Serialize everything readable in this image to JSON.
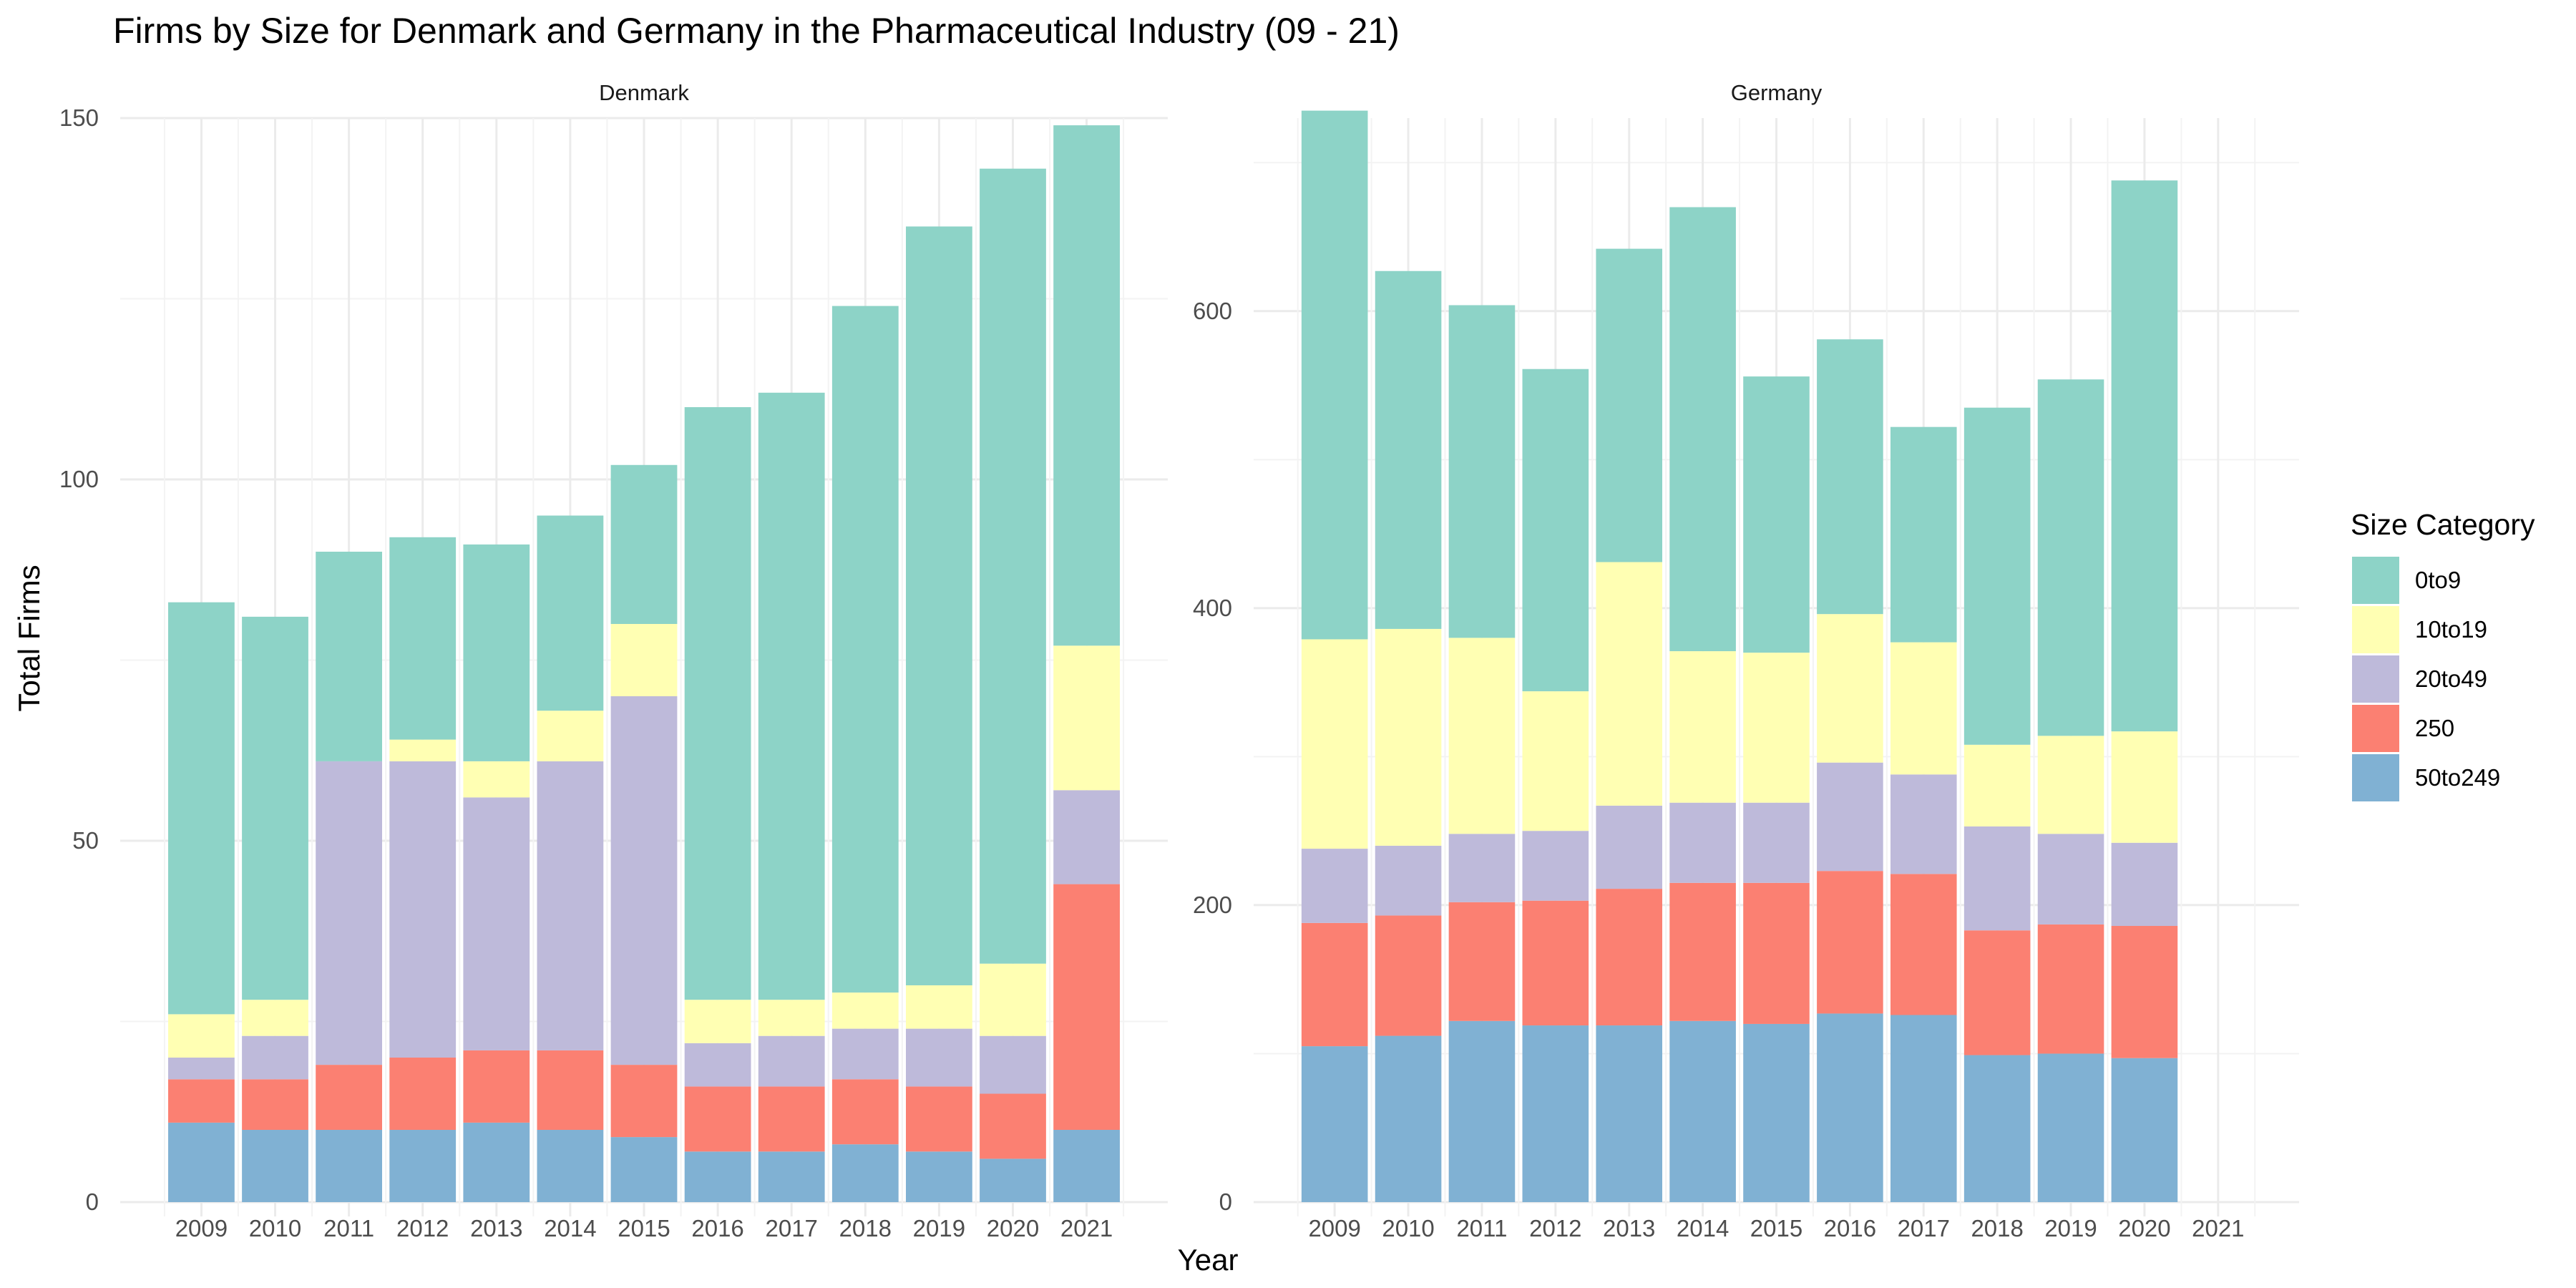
{
  "chart_data": {
    "type": "bar",
    "stacked": true,
    "title": "Firms by Size for Denmark and Germany in the Pharmaceutical Industry (09 - 21)",
    "xlabel": "Year",
    "ylabel": "Total Firms",
    "legend": {
      "title": "Size Category",
      "placement": "right",
      "entries": [
        "0to9",
        "10to19",
        "20to49",
        "250",
        "50to249"
      ]
    },
    "colors": {
      "0to9": "#8dd3c7",
      "10to19": "#ffffb3",
      "20to49": "#bebada",
      "250": "#fb8072",
      "50to249": "#80b1d3"
    },
    "stack_order_bottom_to_top": [
      "50to249",
      "250",
      "20to49",
      "10to19",
      "0to9"
    ],
    "grid": true,
    "panels": [
      {
        "name": "Denmark",
        "categories": [
          "2009",
          "2010",
          "2011",
          "2012",
          "2013",
          "2014",
          "2015",
          "2016",
          "2017",
          "2018",
          "2019",
          "2020",
          "2021"
        ],
        "ylim": [
          0,
          150
        ],
        "yticks": [
          0,
          50,
          100,
          150
        ],
        "series": [
          {
            "name": "50to249",
            "values": [
              11,
              10,
              10,
              10,
              11,
              10,
              9,
              7,
              7,
              8,
              7,
              6,
              10
            ]
          },
          {
            "name": "250",
            "values": [
              6,
              7,
              9,
              10,
              10,
              11,
              10,
              9,
              9,
              9,
              9,
              9,
              34
            ]
          },
          {
            "name": "20to49",
            "values": [
              3,
              6,
              42,
              41,
              35,
              40,
              51,
              6,
              7,
              7,
              8,
              8,
              13
            ]
          },
          {
            "name": "10to19",
            "values": [
              6,
              5,
              0,
              3,
              5,
              7,
              10,
              6,
              5,
              5,
              6,
              10,
              20
            ]
          },
          {
            "name": "0to9",
            "values": [
              57,
              53,
              29,
              28,
              30,
              27,
              22,
              82,
              84,
              95,
              105,
              110,
              72
            ]
          }
        ]
      },
      {
        "name": "Germany",
        "categories": [
          "2009",
          "2010",
          "2011",
          "2012",
          "2013",
          "2014",
          "2015",
          "2016",
          "2017",
          "2018",
          "2019",
          "2020",
          "2021"
        ],
        "ylim": [
          0,
          730
        ],
        "yticks": [
          0,
          200,
          400,
          600
        ],
        "series": [
          {
            "name": "50to249",
            "values": [
              105,
              112,
              122,
              119,
              119,
              122,
              120,
              127,
              126,
              99,
              100,
              97,
              0
            ]
          },
          {
            "name": "250",
            "values": [
              83,
              81,
              80,
              84,
              92,
              93,
              95,
              96,
              95,
              84,
              87,
              89,
              0
            ]
          },
          {
            "name": "20to49",
            "values": [
              50,
              47,
              46,
              47,
              56,
              54,
              54,
              73,
              67,
              70,
              61,
              56,
              0
            ]
          },
          {
            "name": "10to19",
            "values": [
              141,
              146,
              132,
              94,
              164,
              102,
              101,
              100,
              89,
              55,
              66,
              75,
              0
            ]
          },
          {
            "name": "0to9",
            "values": [
              356,
              241,
              224,
              217,
              211,
              299,
              186,
              185,
              145,
              227,
              240,
              371,
              0
            ]
          }
        ]
      }
    ]
  }
}
